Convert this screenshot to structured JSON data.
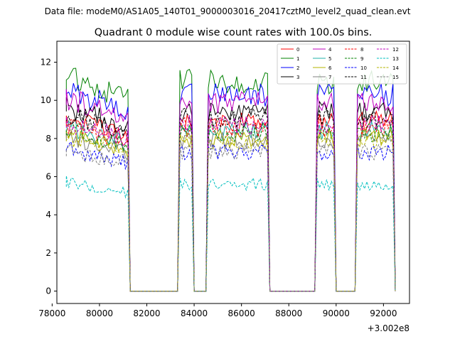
{
  "header": {
    "data_file": "Data file: modeM0/AS1A05_140T01_9000003016_20417cztM0_level2_quad_clean.evt"
  },
  "chart_data": {
    "type": "line",
    "title": "Quadrant 0 module wise count rates with 100.0s bins.",
    "xlabel": "",
    "ylabel": "",
    "x_offset_label": "+3.002e8",
    "xlim": [
      78200,
      93100
    ],
    "ylim": [
      -0.65,
      13.1
    ],
    "x_ticks": [
      78000,
      80000,
      82000,
      84000,
      86000,
      88000,
      90000,
      92000
    ],
    "x_tick_labels": [
      "78000",
      "80000",
      "82000",
      "84000",
      "86000",
      "88000",
      "90000",
      "92000"
    ],
    "y_ticks": [
      0,
      2,
      4,
      6,
      8,
      10,
      12
    ],
    "y_tick_labels": [
      "0",
      "2",
      "4",
      "6",
      "8",
      "10",
      "12"
    ],
    "grid": false,
    "legend_position": "top-right",
    "segments": [
      {
        "start": 78600,
        "end": 81200
      },
      {
        "start": 83400,
        "end": 83900
      },
      {
        "start": 84600,
        "end": 87100
      },
      {
        "start": 89200,
        "end": 89900
      },
      {
        "start": 90900,
        "end": 92400
      }
    ],
    "series": [
      {
        "name": "0",
        "color": "#ff0000",
        "dash": "solid",
        "mean": 8.9
      },
      {
        "name": "1",
        "color": "#008000",
        "dash": "solid",
        "mean": 11.0
      },
      {
        "name": "2",
        "color": "#0000ff",
        "dash": "solid",
        "mean": 10.3
      },
      {
        "name": "3",
        "color": "#000000",
        "dash": "solid",
        "mean": 9.4
      },
      {
        "name": "4",
        "color": "#bf00bf",
        "dash": "solid",
        "mean": 9.9
      },
      {
        "name": "5",
        "color": "#20b2aa",
        "dash": "solid",
        "mean": 8.4
      },
      {
        "name": "6",
        "color": "#b5b500",
        "dash": "solid",
        "mean": 8.0
      },
      {
        "name": "7",
        "color": "#808080",
        "dash": "solid",
        "mean": 7.9
      },
      {
        "name": "8",
        "color": "#ff0000",
        "dash": "dashed",
        "mean": 8.6
      },
      {
        "name": "9",
        "color": "#008000",
        "dash": "dashed",
        "mean": 8.3
      },
      {
        "name": "10",
        "color": "#0000ff",
        "dash": "dashed",
        "mean": 7.3
      },
      {
        "name": "11",
        "color": "#000000",
        "dash": "dashed",
        "mean": 9.1
      },
      {
        "name": "12",
        "color": "#bf00bf",
        "dash": "dashed",
        "mean": 8.7
      },
      {
        "name": "13",
        "color": "#00bfbf",
        "dash": "dashed",
        "mean": 5.6
      },
      {
        "name": "14",
        "color": "#b5b500",
        "dash": "dashed",
        "mean": 7.9
      },
      {
        "name": "15",
        "color": "#808080",
        "dash": "dashed",
        "mean": 7.3
      }
    ]
  }
}
